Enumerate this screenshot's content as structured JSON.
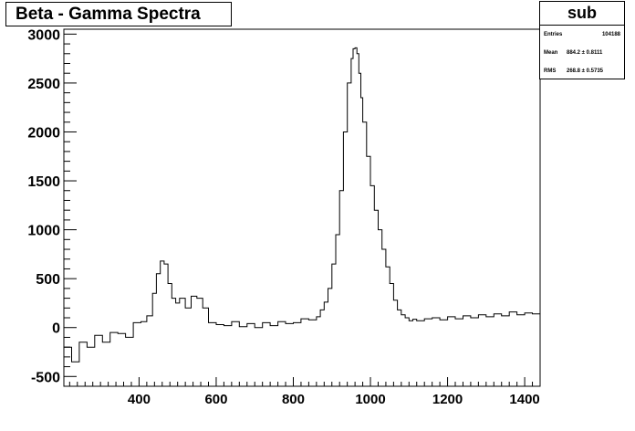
{
  "chart_data": {
    "type": "histogram",
    "title": "Beta - Gamma Spectra",
    "xlabel": "",
    "ylabel": "",
    "xlim": [
      205,
      1440
    ],
    "ylim": [
      -600,
      3050
    ],
    "x_ticks": [
      400,
      600,
      800,
      1000,
      1200,
      1400
    ],
    "y_ticks": [
      -500,
      0,
      500,
      1000,
      1500,
      2000,
      2500,
      3000
    ],
    "x_tick_labels": [
      "400",
      "600",
      "800",
      "1000",
      "1200",
      "1400"
    ],
    "y_tick_labels": [
      "-500",
      "0",
      "500",
      "1000",
      "1500",
      "2000",
      "2500",
      "3000"
    ],
    "grid": false,
    "series": [
      {
        "x": [
          205,
          225,
          245,
          265,
          285,
          305,
          325,
          345,
          365,
          385,
          405,
          420,
          435,
          445,
          455,
          465,
          475,
          485,
          495,
          505,
          520,
          535,
          550,
          565,
          580,
          600,
          620,
          640,
          660,
          680,
          700,
          720,
          740,
          760,
          780,
          800,
          820,
          840,
          860,
          870,
          880,
          890,
          900,
          910,
          920,
          930,
          940,
          950,
          955,
          960,
          965,
          970,
          975,
          980,
          990,
          1000,
          1010,
          1020,
          1030,
          1040,
          1050,
          1060,
          1070,
          1080,
          1090,
          1100,
          1110,
          1120,
          1140,
          1160,
          1180,
          1200,
          1220,
          1240,
          1260,
          1280,
          1300,
          1320,
          1340,
          1360,
          1380,
          1400,
          1420,
          1440
        ],
        "y": [
          -200,
          -350,
          -150,
          -200,
          -80,
          -150,
          -50,
          -60,
          -100,
          50,
          60,
          120,
          350,
          550,
          680,
          650,
          450,
          300,
          250,
          300,
          200,
          320,
          300,
          200,
          50,
          30,
          20,
          60,
          10,
          40,
          0,
          50,
          20,
          60,
          40,
          50,
          90,
          80,
          110,
          180,
          260,
          400,
          650,
          950,
          1400,
          2000,
          2500,
          2750,
          2850,
          2860,
          2800,
          2600,
          2350,
          2100,
          1750,
          1450,
          1200,
          1000,
          800,
          620,
          450,
          280,
          180,
          130,
          100,
          70,
          85,
          70,
          90,
          100,
          80,
          110,
          90,
          120,
          100,
          130,
          110,
          140,
          120,
          160,
          130,
          150,
          140,
          90
        ]
      }
    ],
    "stats": {
      "name": "sub",
      "rows": [
        {
          "key": "Entries",
          "value": "104188"
        },
        {
          "key": "Mean",
          "value": "884.2  ±  0.8111"
        },
        {
          "key": "RMS",
          "value": "268.8  ±  0.5735"
        }
      ]
    }
  }
}
